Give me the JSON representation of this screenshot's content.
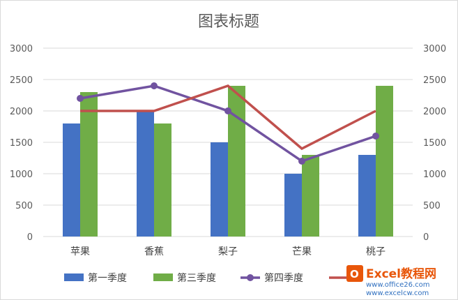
{
  "chart_data": {
    "type": "bar",
    "title": "图表标题",
    "categories": [
      "苹果",
      "香蕉",
      "梨子",
      "芒果",
      "桃子"
    ],
    "ylim": [
      0,
      3000
    ],
    "y_ticks": [
      0,
      500,
      1000,
      1500,
      2000,
      2500,
      3000
    ],
    "secondary_ylim": [
      0,
      3000
    ],
    "grid": true,
    "legend_position": "bottom",
    "series": [
      {
        "name": "第一季度",
        "type": "bar",
        "color": "#4472c4",
        "values": [
          1800,
          2000,
          1500,
          1000,
          1300
        ]
      },
      {
        "name": "第三季度",
        "type": "bar",
        "color": "#70ad47",
        "values": [
          2300,
          1800,
          2400,
          1300,
          2400
        ]
      },
      {
        "name": "第四季度",
        "type": "line",
        "marker": "circle",
        "color": "#7153a0",
        "values": [
          2200,
          2400,
          2000,
          1200,
          1600
        ]
      },
      {
        "name": "",
        "type": "line",
        "marker": "none",
        "color": "#c0504d",
        "values": [
          2000,
          2000,
          2400,
          1400,
          2000
        ]
      }
    ]
  },
  "watermark": {
    "text": "Excel教程网",
    "url1": "www.office26.com",
    "url2": "www.excelcw.com"
  }
}
